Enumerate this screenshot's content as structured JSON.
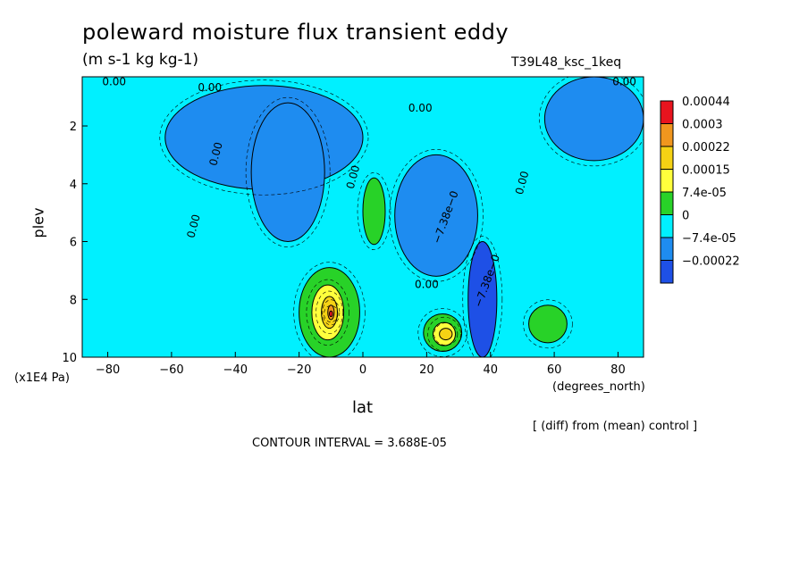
{
  "chart_data": {
    "type": "heatmap",
    "subtype": "filled-contour",
    "title": "poleward moisture flux transient eddy",
    "units": "(m s-1 kg kg-1)",
    "run_id": "T39L48_ksc_1keq",
    "xlabel": "lat",
    "xlabel_units": "(degrees_north)",
    "ylabel": "plev",
    "ylabel_units": "(x1E4 Pa)",
    "x_ticks": [
      -80,
      -60,
      -40,
      -20,
      0,
      20,
      40,
      60,
      80
    ],
    "x_tick_labels": [
      "−80",
      "−60",
      "−40",
      "−20",
      "0",
      "20",
      "40",
      "60",
      "80"
    ],
    "y_ticks": [
      2,
      4,
      6,
      8,
      10
    ],
    "y_tick_labels": [
      "2",
      "4",
      "6",
      "8",
      "10"
    ],
    "xlim": [
      -88,
      88
    ],
    "ylim": [
      10,
      0.3
    ],
    "y_inverted": true,
    "legend": {
      "position": "right",
      "levels": [
        "0.00044",
        "0.0003",
        "0.00022",
        "0.00015",
        "7.4e-05",
        "0",
        "−7.4e-05",
        "−0.00022"
      ],
      "colors": [
        "#e8141e",
        "#f0961e",
        "#f5d214",
        "#ffff3c",
        "#28d228",
        "#00f0ff",
        "#1e8cf0",
        "#1e50e6"
      ]
    },
    "contour_labels": [
      "0.00",
      "0.00",
      "0.00",
      "0.00",
      "0.00",
      "0.00",
      "0.00",
      "0.00",
      "0.00",
      "−7.38e−0",
      "−7.38e−0"
    ],
    "regions": [
      {
        "lat": [
          -88,
          88
        ],
        "plev": [
          0.3,
          10
        ],
        "level": "0"
      },
      {
        "lat": [
          -62,
          0
        ],
        "plev": [
          0.6,
          4.2
        ],
        "level": "−7.4e-05"
      },
      {
        "lat": [
          -35,
          -12
        ],
        "plev": [
          1.2,
          6.0
        ],
        "level": "−7.4e-05"
      },
      {
        "lat": [
          57,
          88
        ],
        "plev": [
          0.3,
          3.2
        ],
        "level": "−7.4e-05"
      },
      {
        "lat": [
          10,
          36
        ],
        "plev": [
          3.0,
          7.2
        ],
        "level": "−7.4e-05"
      },
      {
        "lat": [
          33,
          42
        ],
        "plev": [
          6.0,
          10
        ],
        "level": "−0.00022"
      },
      {
        "lat": [
          -20,
          -1
        ],
        "plev": [
          6.9,
          10
        ],
        "level": "7.4e-05"
      },
      {
        "lat": [
          -16,
          -6
        ],
        "plev": [
          7.5,
          9.4
        ],
        "level": "0.00015"
      },
      {
        "lat": [
          -13,
          -8
        ],
        "plev": [
          7.9,
          9.0
        ],
        "level": "0.00022"
      },
      {
        "lat": [
          -11,
          -9
        ],
        "plev": [
          8.2,
          8.7
        ],
        "level": "0.0003"
      },
      {
        "lat": [
          -10.5,
          -9.5
        ],
        "plev": [
          8.4,
          8.6
        ],
        "level": "0.00044"
      },
      {
        "lat": [
          0,
          7
        ],
        "plev": [
          3.8,
          6.1
        ],
        "level": "7.4e-05"
      },
      {
        "lat": [
          19,
          31
        ],
        "plev": [
          8.5,
          9.8
        ],
        "level": "7.4e-05"
      },
      {
        "lat": [
          22,
          29
        ],
        "plev": [
          8.8,
          9.6
        ],
        "level": "0.00015"
      },
      {
        "lat": [
          24,
          28
        ],
        "plev": [
          9.0,
          9.4
        ],
        "level": "0.00022"
      },
      {
        "lat": [
          52,
          64
        ],
        "plev": [
          8.2,
          9.5
        ],
        "level": "7.4e-05"
      }
    ]
  },
  "footer": {
    "diff_note": "[ (diff) from (mean) control ]",
    "contour_interval": "CONTOUR INTERVAL = 3.688E-05"
  }
}
